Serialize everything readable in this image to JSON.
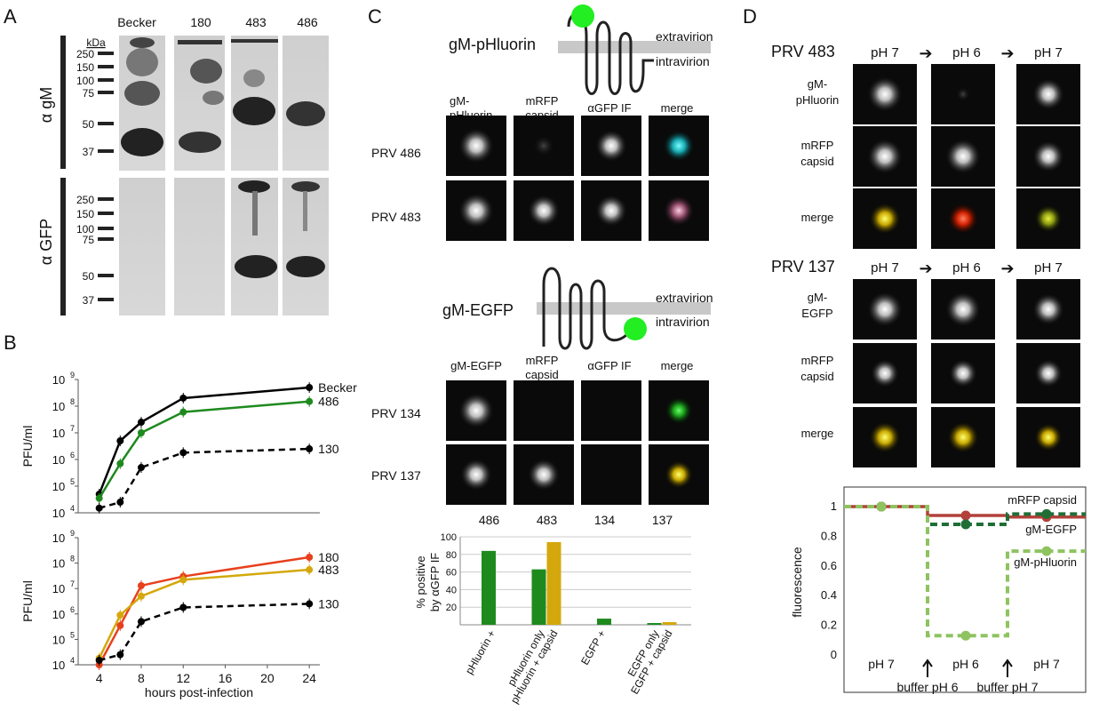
{
  "panels": {
    "a": "A",
    "b": "B",
    "c": "C",
    "d": "D"
  },
  "panel_a": {
    "kda_label": "kDa",
    "lanes": [
      "Becker",
      "180",
      "483",
      "486"
    ],
    "row_labels": [
      "α gM",
      "α GFP"
    ],
    "markers_top": [
      "250",
      "150",
      "100",
      "75",
      "50",
      "37"
    ],
    "markers_bottom": [
      "250",
      "150",
      "100",
      "75",
      "50",
      "37"
    ]
  },
  "panel_c": {
    "construct1": "gM-pHluorin",
    "construct2": "gM-EGFP",
    "extravirion": "extravirion",
    "intravirion": "intravirion",
    "cols1": [
      "gM-",
      "pHluorin",
      "mRFP",
      "capsid",
      "αGFP IF",
      "merge"
    ],
    "cols2": [
      "gM-EGFP",
      "mRFP",
      "capsid",
      "αGFP IF",
      "merge"
    ],
    "rows1": [
      "PRV 486",
      "PRV 483"
    ],
    "rows2": [
      "PRV 134",
      "PRV 137"
    ]
  },
  "panel_d": {
    "strain1": "PRV 483",
    "strain2": "PRV 137",
    "ph_headers": [
      "pH 7",
      "pH 6",
      "pH 7"
    ],
    "rows1": [
      "gM-",
      "pHluorin",
      "mRFP",
      "capsid",
      "merge"
    ],
    "rows2": [
      "gM-",
      "EGFP",
      "mRFP",
      "capsid",
      "merge"
    ]
  },
  "chart_data": [
    {
      "type": "line",
      "ylabel": "PFU/ml",
      "yscale": "log",
      "ylim": [
        10000,
        1000000000
      ],
      "y_ticks": [
        "10",
        "10",
        "10",
        "10",
        "10",
        "10"
      ],
      "y_exps": [
        "4",
        "5",
        "6",
        "7",
        "8",
        "9"
      ],
      "series": [
        {
          "name": "Becker",
          "color": "#000000",
          "dash": false,
          "x": [
            4,
            6,
            8,
            12,
            24
          ],
          "y": [
            50000,
            5000000,
            25000000,
            200000000,
            500000000
          ]
        },
        {
          "name": "486",
          "color": "#1e8a1e",
          "dash": false,
          "x": [
            4,
            6,
            8,
            12,
            24
          ],
          "y": [
            35000,
            700000,
            10000000,
            60000000,
            150000000
          ]
        },
        {
          "name": "130",
          "color": "#000000",
          "dash": true,
          "x": [
            4,
            6,
            8,
            12,
            24
          ],
          "y": [
            15000,
            25000,
            500000,
            1800000,
            2500000
          ]
        }
      ]
    },
    {
      "type": "line",
      "ylabel": "PFU/ml",
      "xlabel": "hours post-infection",
      "yscale": "log",
      "ylim": [
        10000,
        1000000000
      ],
      "xlim": [
        2,
        25
      ],
      "x_ticks": [
        "4",
        "8",
        "12",
        "16",
        "20",
        "24"
      ],
      "y_ticks": [
        "10",
        "10",
        "10",
        "10",
        "10",
        "10"
      ],
      "y_exps": [
        "4",
        "5",
        "6",
        "7",
        "8",
        "9"
      ],
      "series": [
        {
          "name": "180",
          "color": "#e8401c",
          "dash": false,
          "x": [
            4,
            6,
            8,
            12,
            24
          ],
          "y": [
            10000,
            350000,
            13000000,
            30000000,
            170000000
          ]
        },
        {
          "name": "483",
          "color": "#d4a80c",
          "dash": false,
          "x": [
            4,
            6,
            8,
            12,
            24
          ],
          "y": [
            18000,
            900000,
            5000000,
            22000000,
            55000000
          ]
        },
        {
          "name": "130",
          "color": "#000000",
          "dash": true,
          "x": [
            4,
            6,
            8,
            12,
            24
          ],
          "y": [
            15000,
            25000,
            500000,
            1800000,
            2500000
          ]
        }
      ]
    },
    {
      "type": "bar",
      "ylabel_lines": [
        "% positive",
        "by αGFP IF"
      ],
      "ylim": [
        0,
        100
      ],
      "y_ticks": [
        "20",
        "40",
        "60",
        "80",
        "100"
      ],
      "group_labels": [
        "486",
        "483",
        "134",
        "137"
      ],
      "categories": [
        "pHluorin +",
        "pHluorin only",
        "pHluorin + capsid",
        "EGFP +",
        "EGFP only",
        "EGFP + capsid"
      ],
      "bars": [
        {
          "group": 0,
          "value": 84,
          "color": "#1e8a1e"
        },
        {
          "group": 1,
          "value": 63,
          "color": "#1e8a1e"
        },
        {
          "group": 1,
          "value": 94,
          "color": "#d4a80c"
        },
        {
          "group": 2,
          "value": 7,
          "color": "#1e8a1e"
        },
        {
          "group": 3,
          "value": 2,
          "color": "#1e8a1e"
        },
        {
          "group": 3,
          "value": 3,
          "color": "#d4a80c"
        }
      ]
    },
    {
      "type": "line",
      "ylabel": "fluorescence",
      "ylim": [
        0,
        1
      ],
      "y_ticks": [
        "0",
        "0.2",
        "0.4",
        "0.6",
        "0.8",
        "1"
      ],
      "x_ticks": [
        "pH 7",
        "pH 6",
        "pH 7"
      ],
      "annotations": [
        "buffer pH 6",
        "buffer pH 7"
      ],
      "series": [
        {
          "name": "mRFP capsid",
          "color": "#b3403a",
          "dash": false,
          "y": [
            1,
            0.94,
            0.93
          ]
        },
        {
          "name": "gM-EGFP",
          "color": "#1e6e36",
          "dash": true,
          "y": [
            1,
            0.88,
            0.95
          ]
        },
        {
          "name": "gM-pHluorin",
          "color": "#8ec360",
          "dash": true,
          "y": [
            1,
            0.13,
            0.7
          ]
        }
      ]
    }
  ]
}
